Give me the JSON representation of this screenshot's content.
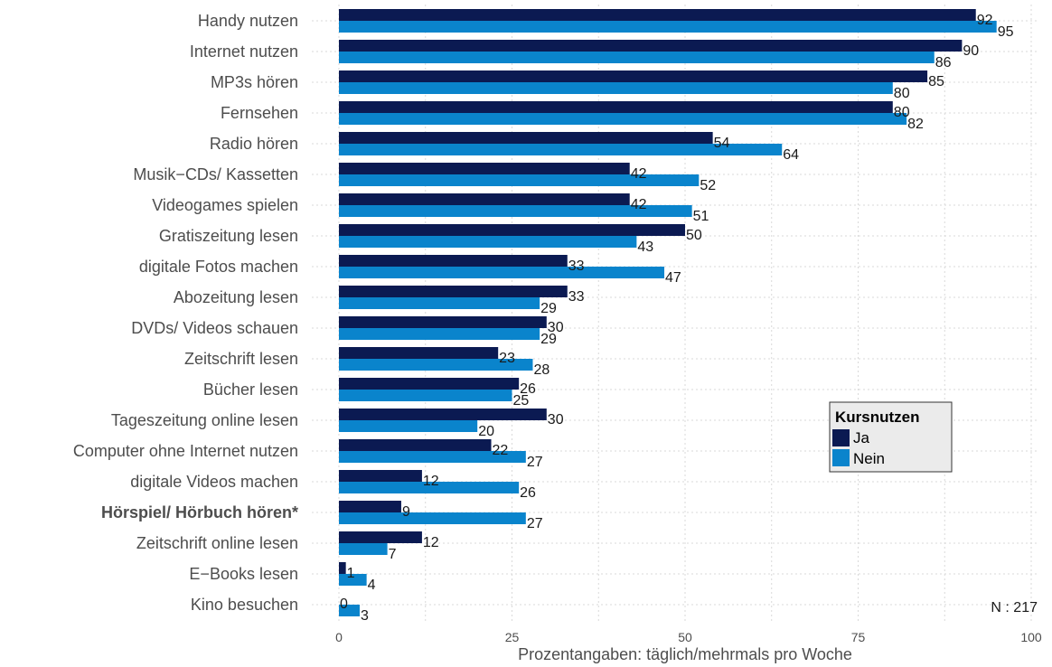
{
  "chart_data": {
    "type": "bar",
    "orientation": "horizontal",
    "categories": [
      "Handy nutzen",
      "Internet nutzen",
      "MP3s hören",
      "Fernsehen",
      "Radio hören",
      "Musik−CDs/ Kassetten",
      "Videogames spielen",
      "Gratiszeitung lesen",
      "digitale Fotos machen",
      "Abozeitung lesen",
      "DVDs/ Videos schauen",
      "Zeitschrift lesen",
      "Bücher lesen",
      "Tageszeitung online lesen",
      "Computer ohne Internet nutzen",
      "digitale Videos machen",
      "Hörspiel/ Hörbuch hören*",
      "Zeitschrift online lesen",
      "E−Books lesen",
      "Kino besuchen"
    ],
    "highlighted_categories": [
      "Hörspiel/ Hörbuch hören*"
    ],
    "series": [
      {
        "name": "Ja",
        "color": "#0b1a52",
        "values": [
          92,
          90,
          85,
          80,
          54,
          42,
          42,
          50,
          33,
          33,
          30,
          23,
          26,
          30,
          22,
          12,
          9,
          12,
          1,
          0
        ]
      },
      {
        "name": "Nein",
        "color": "#0a84cc",
        "values": [
          95,
          86,
          80,
          82,
          64,
          52,
          51,
          43,
          47,
          29,
          29,
          28,
          25,
          20,
          27,
          26,
          27,
          7,
          4,
          3
        ]
      }
    ],
    "xlim": [
      0,
      100
    ],
    "xticks": [
      0,
      25,
      50,
      75,
      100
    ],
    "xlabel": "Prozentangaben: täglich/mehrmals pro Woche",
    "ylabel": "",
    "grid": true,
    "legend": {
      "title": "Kursnutzen",
      "position": "right"
    },
    "note": "N : 217"
  }
}
